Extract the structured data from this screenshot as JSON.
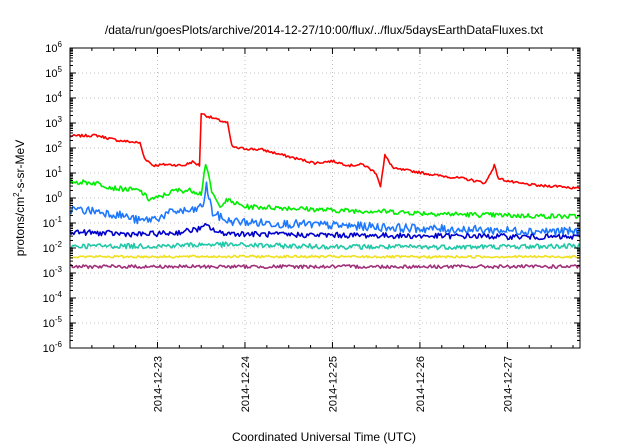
{
  "chart_data": {
    "type": "line",
    "title": "/data/run/goesPlots/archive/2014-12-27/10:00/flux/../flux/5daysEarthDataFluxes.txt",
    "xlabel": "Coordinated Universal Time (UTC)",
    "ylabel_parts": [
      "protons/cm",
      "2",
      "-s-sr-MeV"
    ],
    "xlim_days": [
      0.0,
      5.83
    ],
    "x_tick_labels": [
      "2014-12-23",
      "2014-12-24",
      "2014-12-25",
      "2014-12-26",
      "2014-12-27"
    ],
    "x_tick_days": [
      1,
      2,
      3,
      4,
      5
    ],
    "y_scale": "log",
    "y_tick_exponents": [
      -6,
      -5,
      -4,
      -3,
      -2,
      -1,
      0,
      1,
      2,
      3,
      4,
      5,
      6
    ],
    "y_tick_base": "10",
    "grid": true,
    "series": [
      {
        "color": "#ff0000",
        "points": [
          [
            0.0,
            300
          ],
          [
            0.3,
            320
          ],
          [
            0.55,
            200
          ],
          [
            0.8,
            160
          ],
          [
            0.85,
            40
          ],
          [
            0.95,
            20
          ],
          [
            1.1,
            22
          ],
          [
            1.3,
            20
          ],
          [
            1.4,
            28
          ],
          [
            1.48,
            20
          ],
          [
            1.5,
            2500
          ],
          [
            1.55,
            2000
          ],
          [
            1.7,
            1300
          ],
          [
            1.8,
            1000
          ],
          [
            1.85,
            120
          ],
          [
            1.9,
            100
          ],
          [
            2.2,
            85
          ],
          [
            2.5,
            45
          ],
          [
            2.8,
            25
          ],
          [
            3.0,
            30
          ],
          [
            3.2,
            20
          ],
          [
            3.35,
            22
          ],
          [
            3.5,
            10
          ],
          [
            3.55,
            3
          ],
          [
            3.6,
            50
          ],
          [
            3.7,
            15
          ],
          [
            3.9,
            12
          ],
          [
            4.2,
            8
          ],
          [
            4.5,
            6
          ],
          [
            4.75,
            4
          ],
          [
            4.85,
            20
          ],
          [
            4.9,
            6
          ],
          [
            5.1,
            4
          ],
          [
            5.4,
            3
          ],
          [
            5.6,
            3
          ],
          [
            5.83,
            2.3
          ]
        ]
      },
      {
        "color": "#00ee00",
        "points": [
          [
            0.0,
            4.5
          ],
          [
            0.3,
            4
          ],
          [
            0.5,
            2.5
          ],
          [
            0.8,
            2
          ],
          [
            0.9,
            0.9
          ],
          [
            1.0,
            1
          ],
          [
            1.2,
            2
          ],
          [
            1.4,
            2
          ],
          [
            1.5,
            1.5
          ],
          [
            1.55,
            25
          ],
          [
            1.62,
            1.8
          ],
          [
            1.7,
            0.5
          ],
          [
            1.8,
            0.8
          ],
          [
            2.0,
            0.45
          ],
          [
            2.5,
            0.4
          ],
          [
            3.0,
            0.32
          ],
          [
            3.5,
            0.3
          ],
          [
            4.0,
            0.25
          ],
          [
            4.5,
            0.22
          ],
          [
            5.0,
            0.2
          ],
          [
            5.83,
            0.18
          ]
        ]
      },
      {
        "color": "#1e78ff",
        "points": [
          [
            0.0,
            0.35
          ],
          [
            0.3,
            0.3
          ],
          [
            0.6,
            0.2
          ],
          [
            0.8,
            0.12
          ],
          [
            1.0,
            0.16
          ],
          [
            1.2,
            0.3
          ],
          [
            1.4,
            0.3
          ],
          [
            1.52,
            0.5
          ],
          [
            1.56,
            3
          ],
          [
            1.63,
            0.25
          ],
          [
            1.8,
            0.12
          ],
          [
            2.2,
            0.1
          ],
          [
            2.6,
            0.09
          ],
          [
            3.0,
            0.08
          ],
          [
            3.5,
            0.07
          ],
          [
            4.0,
            0.06
          ],
          [
            4.5,
            0.055
          ],
          [
            5.0,
            0.05
          ],
          [
            5.83,
            0.045
          ]
        ]
      },
      {
        "color": "#0000cc",
        "points": [
          [
            0.0,
            0.045
          ],
          [
            0.3,
            0.04
          ],
          [
            0.8,
            0.035
          ],
          [
            1.2,
            0.04
          ],
          [
            1.5,
            0.06
          ],
          [
            1.56,
            0.08
          ],
          [
            1.7,
            0.04
          ],
          [
            2.2,
            0.035
          ],
          [
            2.8,
            0.033
          ],
          [
            3.4,
            0.032
          ],
          [
            4.0,
            0.03
          ],
          [
            4.6,
            0.03
          ],
          [
            5.2,
            0.028
          ],
          [
            5.83,
            0.027
          ]
        ]
      },
      {
        "color": "#20c8a8",
        "points": [
          [
            0.0,
            0.012
          ],
          [
            1.0,
            0.012
          ],
          [
            1.6,
            0.014
          ],
          [
            2.5,
            0.012
          ],
          [
            3.5,
            0.011
          ],
          [
            4.5,
            0.011
          ],
          [
            5.83,
            0.012
          ]
        ]
      },
      {
        "color": "#f0e020",
        "points": [
          [
            0.0,
            0.0045
          ],
          [
            1.0,
            0.0045
          ],
          [
            2.0,
            0.0046
          ],
          [
            3.0,
            0.0045
          ],
          [
            4.0,
            0.0044
          ],
          [
            5.0,
            0.0045
          ],
          [
            5.83,
            0.0045
          ]
        ]
      },
      {
        "color": "#a0307a",
        "points": [
          [
            0.0,
            0.0018
          ],
          [
            1.0,
            0.0018
          ],
          [
            2.0,
            0.0018
          ],
          [
            3.0,
            0.0018
          ],
          [
            4.0,
            0.0018
          ],
          [
            5.0,
            0.0018
          ],
          [
            5.83,
            0.0018
          ]
        ]
      }
    ]
  }
}
